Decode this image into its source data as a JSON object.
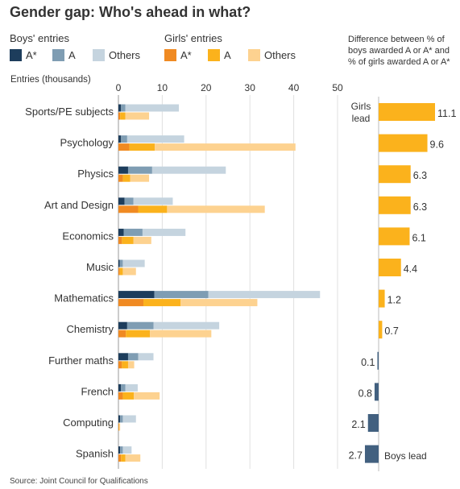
{
  "chart_data": {
    "type": "bar",
    "title": "Gender gap: Who's ahead in what?",
    "units_label": "Entries (thousands)",
    "source": "Source: Joint Council for Qualifications",
    "legend": {
      "boys_heading": "Boys' entries",
      "girls_heading": "Girls' entries",
      "items": [
        {
          "group": "boys",
          "label": "A*",
          "color": "#1d3d5c"
        },
        {
          "group": "boys",
          "label": "A",
          "color": "#7f9db3"
        },
        {
          "group": "boys",
          "label": "Others",
          "color": "#c5d4df"
        },
        {
          "group": "girls",
          "label": "A*",
          "color": "#f08a22"
        },
        {
          "group": "girls",
          "label": "A",
          "color": "#fbb21c"
        },
        {
          "group": "girls",
          "label": "Others",
          "color": "#fdd290"
        }
      ]
    },
    "xlim": [
      0,
      50
    ],
    "xticks": [
      "0",
      "10",
      "20",
      "30",
      "40",
      "50"
    ],
    "categories": [
      "Sports/PE subjects",
      "Psychology",
      "Physics",
      "Art and Design",
      "Economics",
      "Music",
      "Mathematics",
      "Chemistry",
      "Further maths",
      "French",
      "Computing",
      "Spanish"
    ],
    "boys": {
      "a_star": [
        0.6,
        0.6,
        2.2,
        1.4,
        1.2,
        0.3,
        8.2,
        2.0,
        2.2,
        0.6,
        0.4,
        0.4
      ],
      "a": [
        1.0,
        1.4,
        5.5,
        2.0,
        4.3,
        0.7,
        12.3,
        6.0,
        2.3,
        1.0,
        0.6,
        0.6
      ],
      "others": [
        12.2,
        13.0,
        16.8,
        9.0,
        9.8,
        5.0,
        25.5,
        15.0,
        3.5,
        2.8,
        3.0,
        2.0
      ]
    },
    "girls": {
      "a_star": [
        0.4,
        2.5,
        1.0,
        4.5,
        0.8,
        0.3,
        5.7,
        1.7,
        0.8,
        1.0,
        0.1,
        0.6
      ],
      "a": [
        1.2,
        5.8,
        1.7,
        6.6,
        2.6,
        0.7,
        8.5,
        5.5,
        1.4,
        2.5,
        0.1,
        1.0
      ],
      "others": [
        5.4,
        32.1,
        4.3,
        22.3,
        4.1,
        3.0,
        17.5,
        14.0,
        1.4,
        5.9,
        0.2,
        3.4
      ]
    },
    "difference": {
      "title": "Difference between % of boys awarded A or A* and % of girls awarded A or A*",
      "values": [
        11.1,
        9.6,
        6.3,
        6.3,
        6.1,
        4.4,
        1.2,
        0.7,
        0.1,
        0.8,
        2.1,
        2.7
      ],
      "value_labels": [
        "11.1",
        "9.6",
        "6.3",
        "6.3",
        "6.1",
        "4.4",
        "1.2",
        "0.7",
        "0.1",
        "0.8",
        "2.1",
        "2.7"
      ],
      "leader": [
        "girls",
        "girls",
        "girls",
        "girls",
        "girls",
        "girls",
        "girls",
        "girls",
        "boys",
        "boys",
        "boys",
        "boys"
      ],
      "girls_lead_label": "Girls lead",
      "boys_lead_label": "Boys lead",
      "girls_color": "#fbb21c",
      "boys_color": "#42607f"
    }
  }
}
